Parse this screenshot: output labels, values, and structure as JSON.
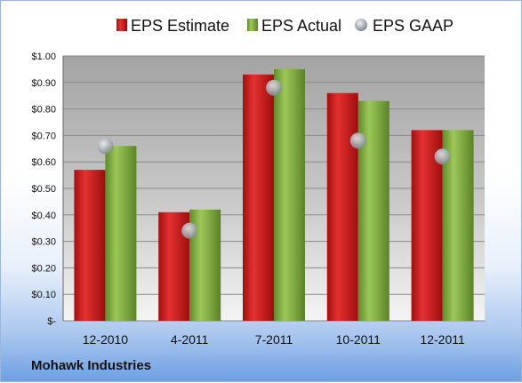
{
  "chart_data": {
    "type": "bar",
    "title": "",
    "xlabel": "",
    "ylabel": "",
    "categories": [
      "12-2010",
      "4-2011",
      "7-2011",
      "10-2011",
      "12-2011"
    ],
    "series": [
      {
        "name": "EPS Estimate",
        "type": "bar",
        "values": [
          0.57,
          0.41,
          0.93,
          0.86,
          0.72
        ]
      },
      {
        "name": "EPS Actual",
        "type": "bar",
        "values": [
          0.66,
          0.42,
          0.95,
          0.83,
          0.72
        ]
      },
      {
        "name": "EPS GAAP",
        "type": "scatter",
        "values": [
          0.66,
          0.34,
          0.88,
          0.68,
          0.62
        ]
      }
    ],
    "ylim": [
      0,
      1.0
    ],
    "yticks": [
      0,
      0.1,
      0.2,
      0.3,
      0.4,
      0.5,
      0.6,
      0.7,
      0.8,
      0.9,
      1.0
    ],
    "ytick_labels": [
      "$-",
      "$0.10",
      "$0.20",
      "$0.30",
      "$0.40",
      "$0.50",
      "$0.60",
      "$0.70",
      "$0.80",
      "$0.90",
      "$1.00"
    ],
    "grid": true,
    "legend": "top",
    "colors": {
      "estimate": "#d42020",
      "actual": "#8cb84a",
      "gaap": "#b8bec6"
    },
    "footer": "Mohawk Industries"
  }
}
